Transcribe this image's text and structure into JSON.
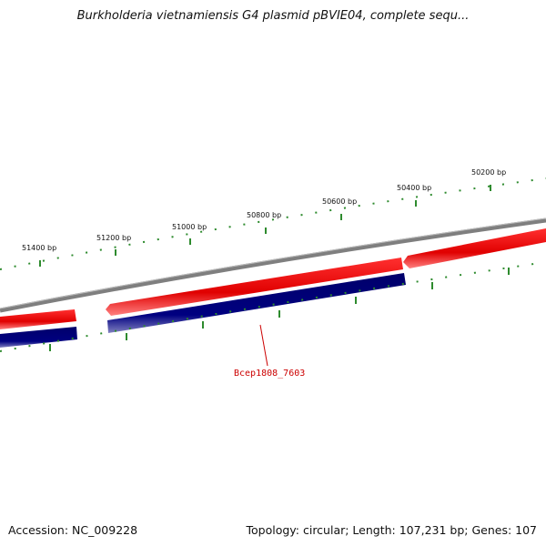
{
  "title": "Burkholderia vietnamiensis G4 plasmid pBVIE04, complete sequ...",
  "footer": {
    "accession": "Accession: NC_009228",
    "summary": "Topology: circular; Length: 107,231 bp; Genes: 107"
  },
  "scale": {
    "tick_labels": [
      "51400 bp",
      "51200 bp",
      "51000 bp",
      "50800 bp",
      "50600 bp",
      "50400 bp",
      "50200 bp"
    ]
  },
  "genes": {
    "highlighted_label": "Bcep1808_7603"
  },
  "colors": {
    "backbone": "#7f7f7f",
    "forward_gene": "#e00000",
    "reverse_gene": "#00007a",
    "tick": "#2e8b2e",
    "label": "#cc0000"
  }
}
